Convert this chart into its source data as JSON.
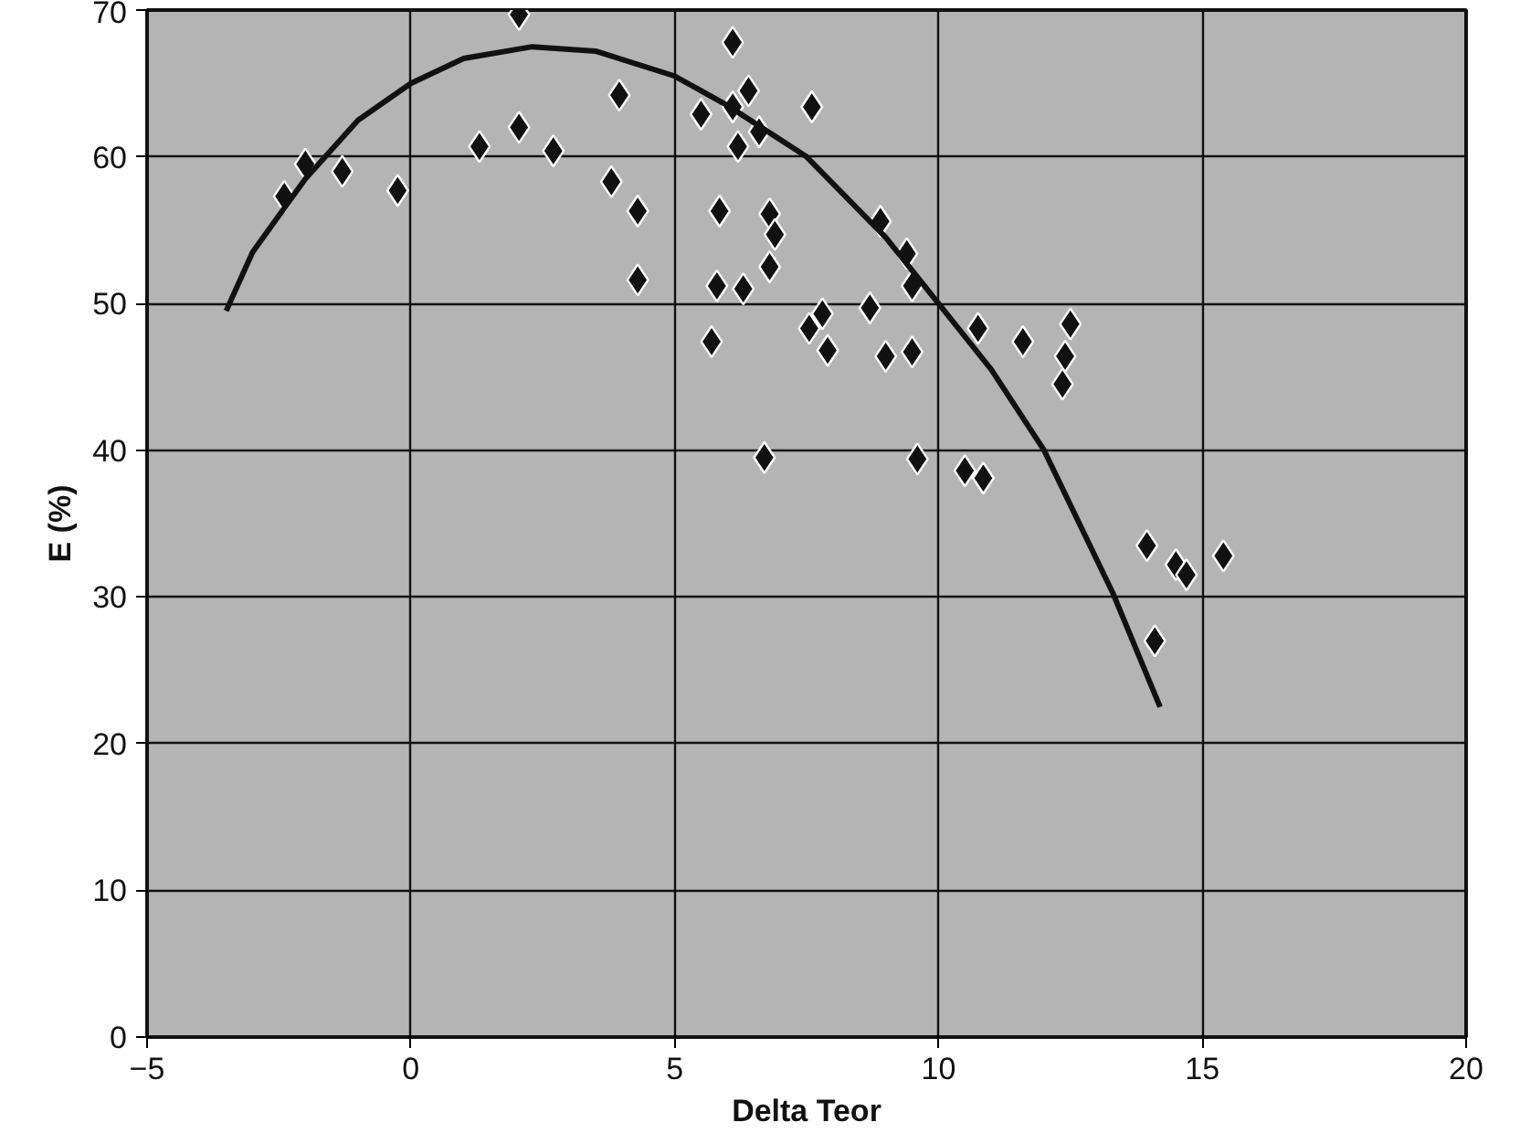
{
  "chart_data": {
    "type": "scatter",
    "xlabel": "Delta Teor",
    "ylabel": "E (%)",
    "xlim": [
      -5,
      20
    ],
    "ylim": [
      0,
      70
    ],
    "xticks": [
      -5,
      0,
      5,
      10,
      15,
      20
    ],
    "yticks": [
      0,
      10,
      20,
      30,
      40,
      50,
      60,
      70
    ],
    "grid": true,
    "marker": "diamond",
    "series": [
      {
        "color": "#111111",
        "x": [
          -2.4,
          -2.0,
          -1.3,
          -0.25,
          1.3,
          2.05,
          2.05,
          2.7,
          3.95,
          3.8,
          4.3,
          4.3,
          6.1,
          5.5,
          6.1,
          6.2,
          6.6,
          7.6,
          5.85,
          6.8,
          6.9,
          6.8,
          5.8,
          6.3,
          5.7,
          6.7,
          8.9,
          9.4,
          9.5,
          8.7,
          7.8,
          7.9,
          7.55,
          9.0,
          9.5,
          10.75,
          11.6,
          12.5,
          12.4,
          12.35,
          9.6,
          10.5,
          10.85,
          13.95,
          14.5,
          14.7,
          15.4,
          14.1,
          6.4
        ],
        "values": [
          57.3,
          59.5,
          59,
          57.7,
          60.7,
          62,
          69.7,
          60.4,
          64.2,
          58.3,
          56.3,
          51.6,
          67.8,
          62.9,
          63.4,
          60.7,
          61.7,
          63.4,
          56.3,
          56.1,
          54.7,
          52.5,
          51.2,
          51,
          47.4,
          39.5,
          55.6,
          53.4,
          51.2,
          49.7,
          49.3,
          46.8,
          48.3,
          46.4,
          46.7,
          48.3,
          47.4,
          48.6,
          46.4,
          44.5,
          39.4,
          38.6,
          38.1,
          33.5,
          32.2,
          31.5,
          32.8,
          27,
          64.5
        ]
      },
      {
        "type": "line",
        "color": "#111111",
        "marker": "none",
        "x": [
          -3.5,
          -3,
          -2,
          -1,
          0,
          1,
          2.3,
          3.5,
          5,
          6,
          7.5,
          9,
          10,
          11,
          12,
          13.3,
          14.2
        ],
        "values": [
          49.5,
          53.5,
          58.5,
          62.5,
          65,
          66.7,
          67.5,
          67.2,
          65.5,
          63.5,
          60,
          54.5,
          50,
          45.5,
          40,
          30.3,
          22.5
        ]
      }
    ]
  }
}
